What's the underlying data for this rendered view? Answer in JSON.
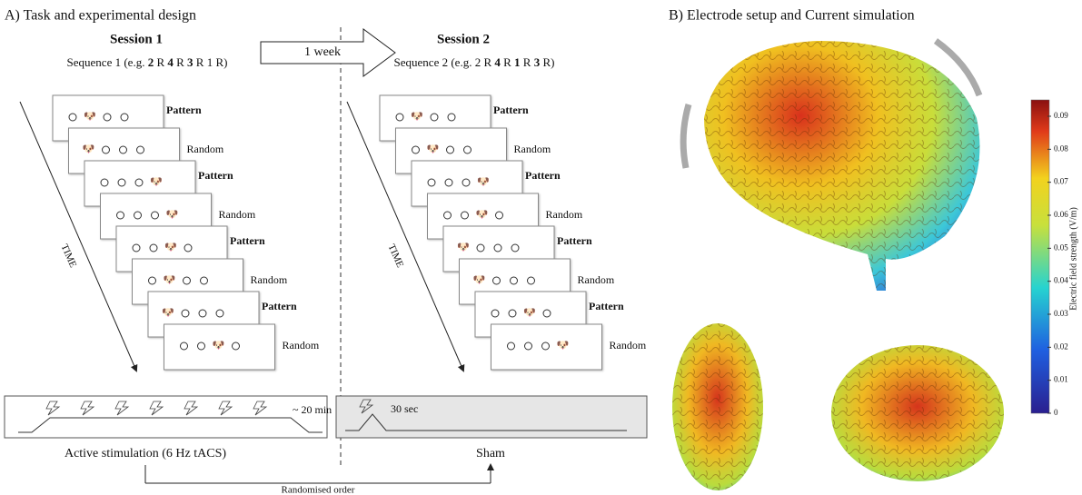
{
  "panel_a": {
    "title": "A) Task and experimental design",
    "interval": "1 week",
    "sessions": [
      {
        "title": "Session 1",
        "sequence": "Sequence 1 (e.g. 2 R 4 R 3 R 1 R)",
        "trials": [
          "Pattern",
          "Random",
          "Pattern",
          "Random",
          "Pattern",
          "Random",
          "Pattern",
          "Random"
        ],
        "time_label": "TIME",
        "duration": "~ 20 min",
        "condition": "Active stimulation (6 Hz tACS)"
      },
      {
        "title": "Session 2",
        "sequence": "Sequence 2 (e.g. 2 R 4 R 1 R 3 R)",
        "trials": [
          "Pattern",
          "Random",
          "Pattern",
          "Random",
          "Pattern",
          "Random",
          "Pattern",
          "Random"
        ],
        "time_label": "TIME",
        "duration": "30 sec",
        "condition": "Sham"
      }
    ],
    "order_label": "Randomised order"
  },
  "panel_b": {
    "title": "B) Electrode setup and Current simulation",
    "colorbar": {
      "label": "Electric field strength (V/m)",
      "ticks": [
        "0.09",
        "0.08",
        "0.07",
        "0.06",
        "0.05",
        "0.04",
        "0.03",
        "0.02",
        "0.01",
        "0"
      ]
    }
  }
}
